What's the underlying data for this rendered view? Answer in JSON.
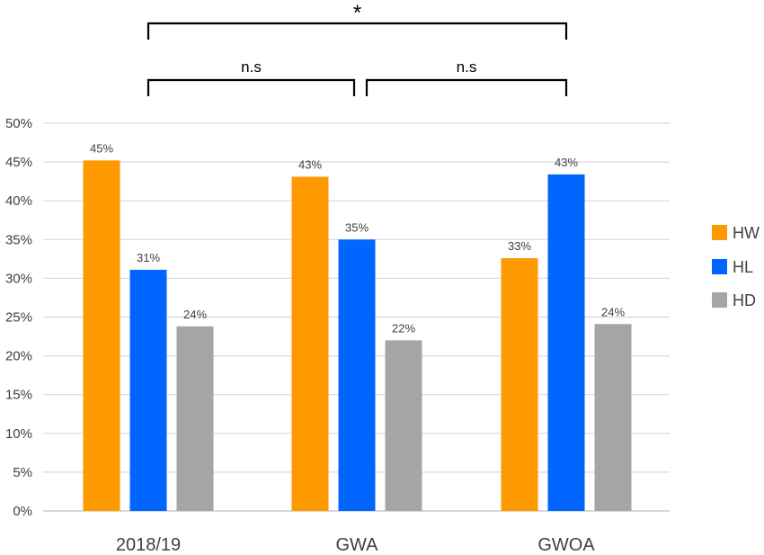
{
  "chart_data": {
    "type": "bar",
    "categories": [
      "2018/19",
      "GWA",
      "GWOA"
    ],
    "series": [
      {
        "name": "HW",
        "color": "#FF9900",
        "values": [
          45.2,
          43.1,
          32.6
        ],
        "labels": [
          "45%",
          "43%",
          "33%"
        ]
      },
      {
        "name": "HL",
        "color": "#0066FF",
        "values": [
          31.1,
          35.0,
          43.4
        ],
        "labels": [
          "31%",
          "35%",
          "43%"
        ]
      },
      {
        "name": "HD",
        "color": "#A5A5A5",
        "values": [
          23.8,
          22.0,
          24.1
        ],
        "labels": [
          "24%",
          "22%",
          "24%"
        ]
      }
    ],
    "ylim": [
      0,
      50
    ],
    "yticks": [
      "0%",
      "5%",
      "10%",
      "15%",
      "20%",
      "25%",
      "30%",
      "35%",
      "40%",
      "45%",
      "50%"
    ],
    "grid": true,
    "legend_position": "right",
    "title": "",
    "xlabel": "",
    "ylabel": "",
    "annotations": [
      {
        "from_category": 0,
        "to_category": 2,
        "level": 2,
        "text": "*"
      },
      {
        "from_category": 0,
        "to_category": 1,
        "level": 1,
        "text": "n.s"
      },
      {
        "from_category": 1,
        "to_category": 2,
        "level": 1,
        "text": "n.s"
      }
    ]
  }
}
